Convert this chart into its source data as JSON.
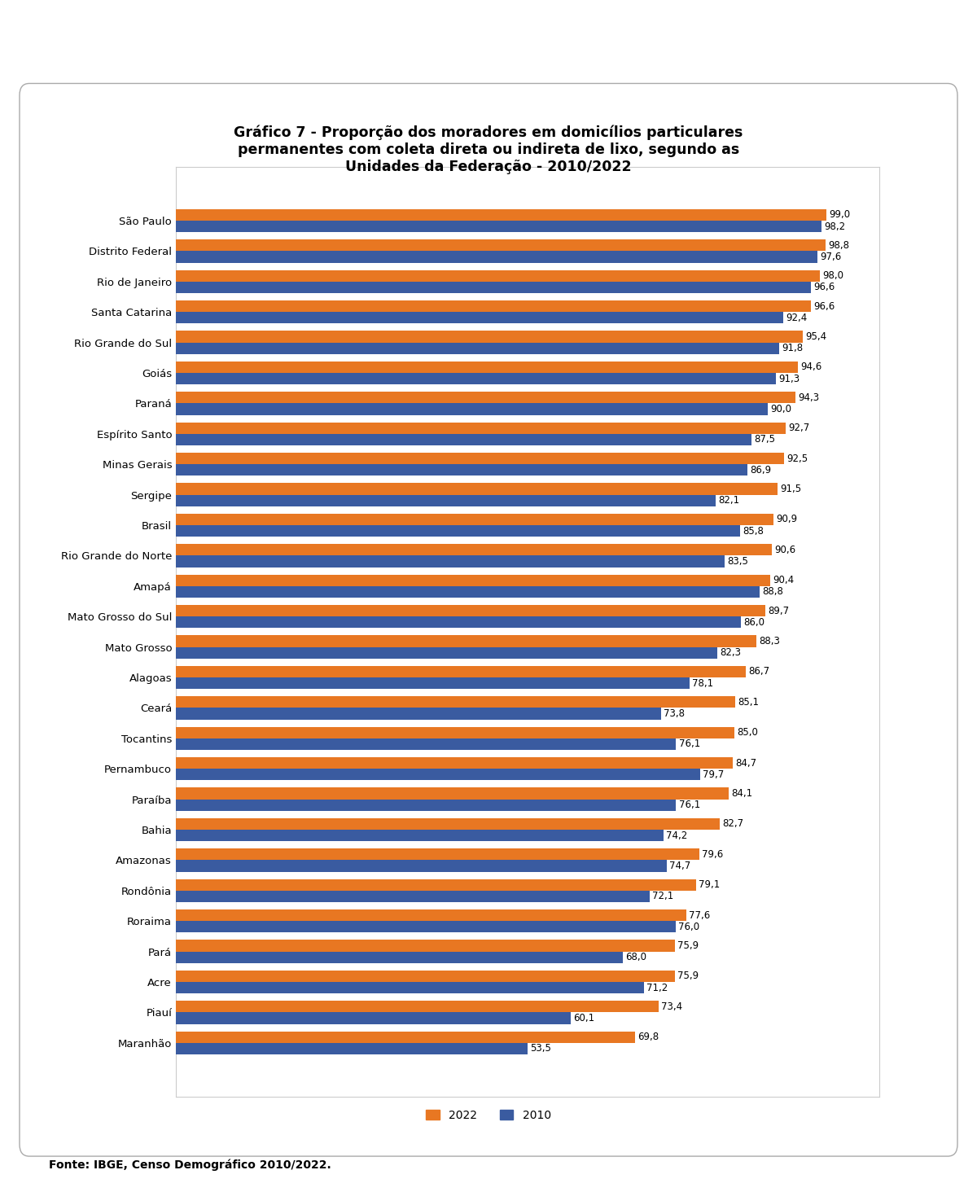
{
  "title": "Gráfico 7 - Proporção dos moradores em domicílios particulares\npermanentes com coleta direta ou indireta de lixo, segundo as\nUnidades da Federação - 2010/2022",
  "fonte": "Fonte: IBGE, Censo Demográfico 2010/2022.",
  "categories": [
    "São Paulo",
    "Distrito Federal",
    "Rio de Janeiro",
    "Santa Catarina",
    "Rio Grande do Sul",
    "Goiás",
    "Paraná",
    "Espírito Santo",
    "Minas Gerais",
    "Sergipe",
    "Brasil",
    "Rio Grande do Norte",
    "Amapá",
    "Mato Grosso do Sul",
    "Mato Grosso",
    "Alagoas",
    "Ceará",
    "Tocantins",
    "Pernambuco",
    "Paraíba",
    "Bahia",
    "Amazonas",
    "Rondônia",
    "Roraima",
    "Pará",
    "Acre",
    "Piauí",
    "Maranhão"
  ],
  "values_2022": [
    99.0,
    98.8,
    98.0,
    96.6,
    95.4,
    94.6,
    94.3,
    92.7,
    92.5,
    91.5,
    90.9,
    90.6,
    90.4,
    89.7,
    88.3,
    86.7,
    85.1,
    85.0,
    84.7,
    84.1,
    82.7,
    79.6,
    79.1,
    77.6,
    75.9,
    75.9,
    73.4,
    69.8
  ],
  "values_2010": [
    98.2,
    97.6,
    96.6,
    92.4,
    91.8,
    91.3,
    90.0,
    87.5,
    86.9,
    82.1,
    85.8,
    83.5,
    88.8,
    86.0,
    82.3,
    78.1,
    73.8,
    76.1,
    79.7,
    76.1,
    74.2,
    74.7,
    72.1,
    76.0,
    68.0,
    71.2,
    60.1,
    53.5
  ],
  "color_2022": "#E87722",
  "color_2010": "#3A5BA0",
  "bar_height": 0.38,
  "xlim": [
    0,
    107
  ],
  "title_fontsize": 12.5,
  "label_fontsize": 9.5,
  "value_fontsize": 8.5,
  "legend_fontsize": 10,
  "fonte_fontsize": 10,
  "background_color": "#FFFFFF",
  "plot_bg_color": "#FFFFFF"
}
